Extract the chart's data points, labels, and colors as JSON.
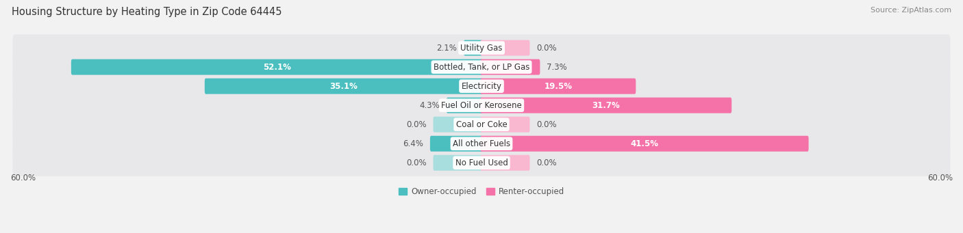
{
  "title": "Housing Structure by Heating Type in Zip Code 64445",
  "source": "Source: ZipAtlas.com",
  "categories": [
    "Utility Gas",
    "Bottled, Tank, or LP Gas",
    "Electricity",
    "Fuel Oil or Kerosene",
    "Coal or Coke",
    "All other Fuels",
    "No Fuel Used"
  ],
  "owner_values": [
    2.1,
    52.1,
    35.1,
    4.3,
    0.0,
    6.4,
    0.0
  ],
  "renter_values": [
    0.0,
    7.3,
    19.5,
    31.7,
    0.0,
    41.5,
    0.0
  ],
  "owner_color": "#4bbfbf",
  "renter_color": "#f472a8",
  "owner_color_light": "#a8dede",
  "renter_color_light": "#f9b8d0",
  "owner_label": "Owner-occupied",
  "renter_label": "Renter-occupied",
  "axis_max": 60.0,
  "bg_color": "#f2f2f2",
  "row_bg_color": "#e8e8eb",
  "title_fontsize": 10.5,
  "source_fontsize": 8,
  "label_fontsize": 8.5,
  "axis_label_fontsize": 8.5,
  "legend_fontsize": 8.5,
  "category_fontsize": 8.5,
  "zero_bar_size": 6.0
}
